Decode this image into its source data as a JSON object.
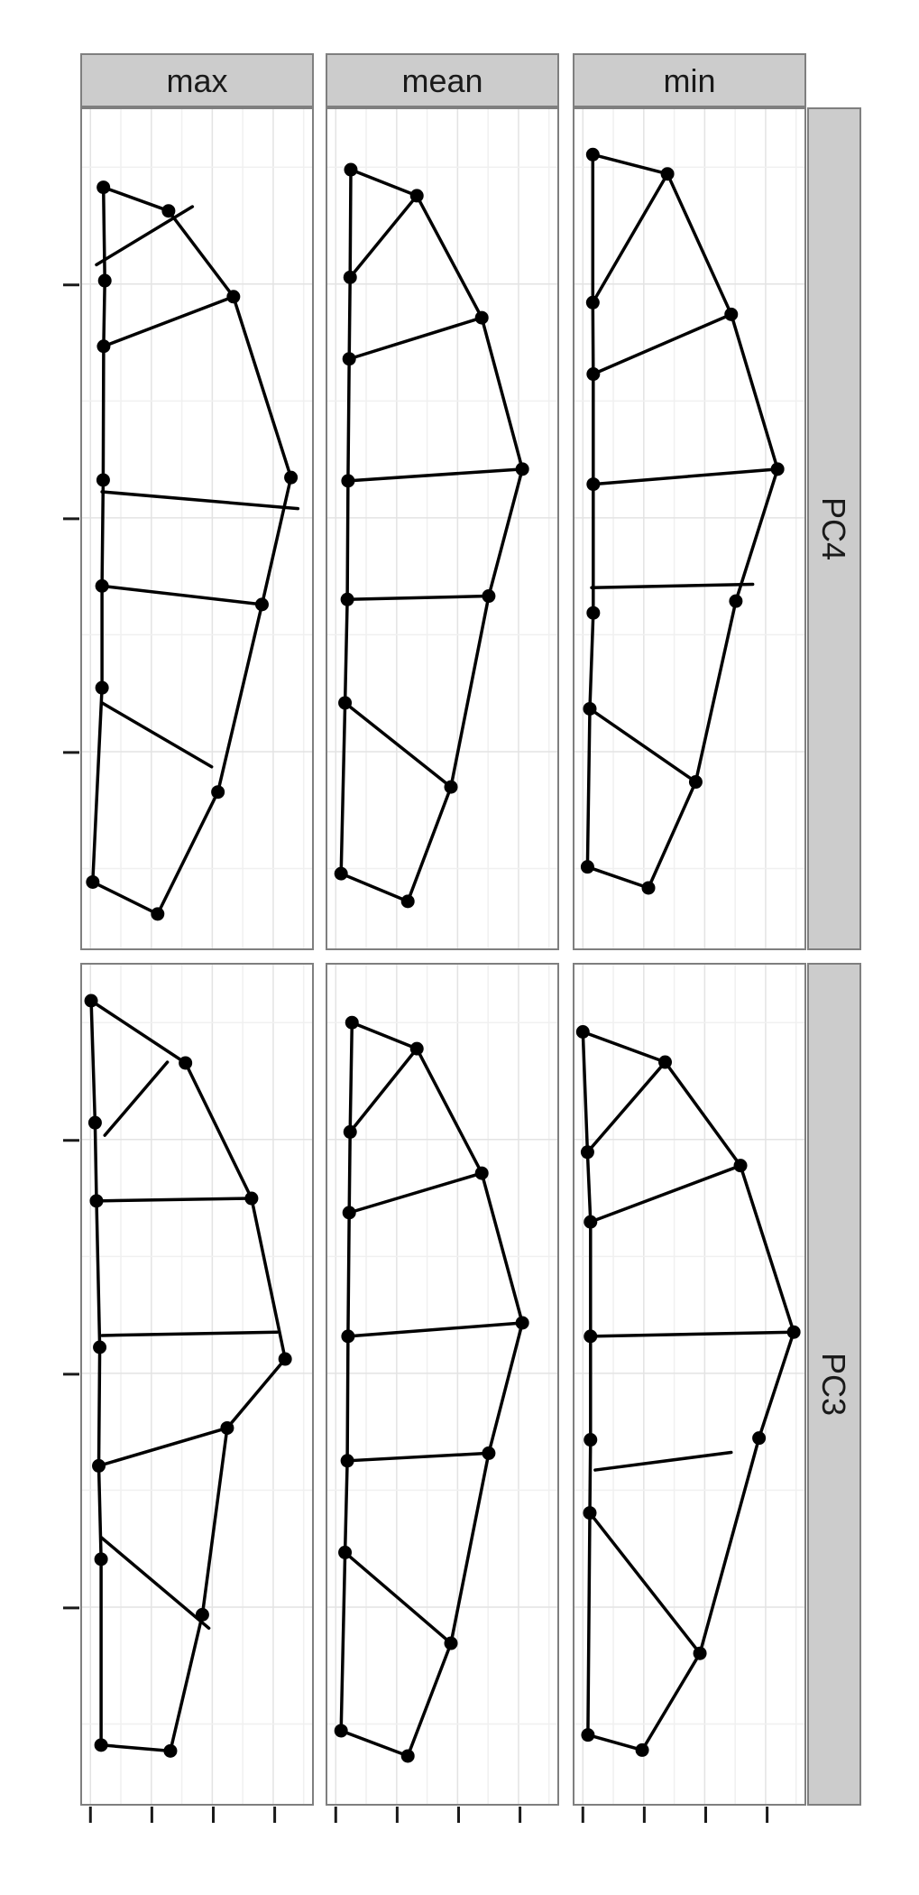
{
  "chart_data": {
    "type": "line",
    "title": "",
    "xlabel": "",
    "ylabel": "",
    "x_tick_count": 4,
    "y_tick_count": 3,
    "xlim": [
      0,
      1
    ],
    "ylim": [
      0,
      1
    ],
    "grid": true,
    "facet_columns": [
      "max",
      "mean",
      "min"
    ],
    "facet_rows": [
      "PC4",
      "PC3"
    ],
    "panels": [
      {
        "row": "PC4",
        "col": "max",
        "landmarks": [
          [
            0.096,
            0.094
          ],
          [
            0.377,
            0.122
          ],
          [
            0.657,
            0.224
          ],
          [
            0.905,
            0.439
          ],
          [
            0.78,
            0.59
          ],
          [
            0.59,
            0.813
          ],
          [
            0.33,
            0.958
          ],
          [
            0.05,
            0.92
          ],
          [
            0.09,
            0.689
          ],
          [
            0.09,
            0.568
          ],
          [
            0.095,
            0.442
          ],
          [
            0.097,
            0.283
          ],
          [
            0.102,
            0.205
          ]
        ],
        "outline": [
          0,
          1,
          2,
          3,
          4,
          5,
          6,
          7,
          8,
          9,
          10,
          11,
          12,
          0
        ],
        "chords": [
          [
            [
              0.066,
              0.186
            ],
            [
              0.48,
              0.117
            ]
          ],
          [
            [
              0.097,
              0.283
            ],
            [
              0.657,
              0.224
            ]
          ],
          [
            [
              0.09,
              0.456
            ],
            [
              0.935,
              0.476
            ]
          ],
          [
            [
              0.09,
              0.568
            ],
            [
              0.78,
              0.59
            ]
          ],
          [
            [
              0.09,
              0.707
            ],
            [
              0.563,
              0.783
            ]
          ]
        ]
      },
      {
        "row": "PC4",
        "col": "mean",
        "landmarks": [
          [
            0.105,
            0.073
          ],
          [
            0.39,
            0.104
          ],
          [
            0.67,
            0.249
          ],
          [
            0.845,
            0.429
          ],
          [
            0.7,
            0.58
          ],
          [
            0.537,
            0.807
          ],
          [
            0.351,
            0.943
          ],
          [
            0.063,
            0.91
          ],
          [
            0.08,
            0.707
          ],
          [
            0.09,
            0.584
          ],
          [
            0.093,
            0.443
          ],
          [
            0.098,
            0.298
          ],
          [
            0.102,
            0.201
          ]
        ],
        "outline": [
          0,
          1,
          2,
          3,
          4,
          5,
          6,
          7,
          8,
          9,
          10,
          11,
          12,
          0
        ],
        "chords": [
          [
            [
              0.102,
              0.201
            ],
            [
              0.39,
              0.104
            ]
          ],
          [
            [
              0.098,
              0.298
            ],
            [
              0.67,
              0.249
            ]
          ],
          [
            [
              0.093,
              0.443
            ],
            [
              0.845,
              0.429
            ]
          ],
          [
            [
              0.09,
              0.584
            ],
            [
              0.7,
              0.58
            ]
          ],
          [
            [
              0.08,
              0.707
            ],
            [
              0.537,
              0.807
            ]
          ]
        ]
      },
      {
        "row": "PC4",
        "col": "min",
        "landmarks": [
          [
            0.083,
            0.055
          ],
          [
            0.405,
            0.078
          ],
          [
            0.68,
            0.245
          ],
          [
            0.88,
            0.429
          ],
          [
            0.7,
            0.586
          ],
          [
            0.527,
            0.801
          ],
          [
            0.323,
            0.927
          ],
          [
            0.06,
            0.902
          ],
          [
            0.07,
            0.714
          ],
          [
            0.085,
            0.6
          ],
          [
            0.085,
            0.447
          ],
          [
            0.085,
            0.316
          ],
          [
            0.083,
            0.231
          ]
        ],
        "outline": [
          0,
          1,
          2,
          3,
          4,
          5,
          6,
          7,
          8,
          9,
          10,
          11,
          12,
          0
        ],
        "chords": [
          [
            [
              0.083,
              0.231
            ],
            [
              0.405,
              0.078
            ]
          ],
          [
            [
              0.085,
              0.316
            ],
            [
              0.68,
              0.245
            ]
          ],
          [
            [
              0.085,
              0.447
            ],
            [
              0.88,
              0.429
            ]
          ],
          [
            [
              0.078,
              0.57
            ],
            [
              0.773,
              0.566
            ]
          ],
          [
            [
              0.07,
              0.714
            ],
            [
              0.527,
              0.801
            ]
          ]
        ]
      },
      {
        "row": "PC3",
        "col": "max",
        "landmarks": [
          [
            0.043,
            0.044
          ],
          [
            0.45,
            0.118
          ],
          [
            0.735,
            0.279
          ],
          [
            0.88,
            0.47
          ],
          [
            0.63,
            0.552
          ],
          [
            0.523,
            0.774
          ],
          [
            0.385,
            0.936
          ],
          [
            0.086,
            0.929
          ],
          [
            0.086,
            0.708
          ],
          [
            0.076,
            0.597
          ],
          [
            0.08,
            0.456
          ],
          [
            0.066,
            0.282
          ],
          [
            0.06,
            0.189
          ]
        ],
        "outline": [
          0,
          1,
          2,
          3,
          4,
          5,
          6,
          7,
          8,
          9,
          10,
          11,
          12,
          0
        ],
        "chords": [
          [
            [
              0.102,
              0.204
            ],
            [
              0.372,
              0.117
            ]
          ],
          [
            [
              0.066,
              0.282
            ],
            [
              0.735,
              0.279
            ]
          ],
          [
            [
              0.09,
              0.442
            ],
            [
              0.845,
              0.438
            ]
          ],
          [
            [
              0.076,
              0.597
            ],
            [
              0.63,
              0.552
            ]
          ],
          [
            [
              0.086,
              0.682
            ],
            [
              0.551,
              0.79
            ]
          ]
        ]
      },
      {
        "row": "PC3",
        "col": "mean",
        "landmarks": [
          [
            0.11,
            0.07
          ],
          [
            0.39,
            0.101
          ],
          [
            0.67,
            0.249
          ],
          [
            0.845,
            0.427
          ],
          [
            0.7,
            0.582
          ],
          [
            0.537,
            0.808
          ],
          [
            0.351,
            0.942
          ],
          [
            0.063,
            0.912
          ],
          [
            0.08,
            0.7
          ],
          [
            0.09,
            0.591
          ],
          [
            0.093,
            0.443
          ],
          [
            0.098,
            0.296
          ],
          [
            0.102,
            0.2
          ]
        ],
        "outline": [
          0,
          1,
          2,
          3,
          4,
          5,
          6,
          7,
          8,
          9,
          10,
          11,
          12,
          0
        ],
        "chords": [
          [
            [
              0.102,
              0.2
            ],
            [
              0.39,
              0.101
            ]
          ],
          [
            [
              0.098,
              0.296
            ],
            [
              0.67,
              0.249
            ]
          ],
          [
            [
              0.093,
              0.443
            ],
            [
              0.845,
              0.427
            ]
          ],
          [
            [
              0.09,
              0.591
            ],
            [
              0.7,
              0.582
            ]
          ],
          [
            [
              0.08,
              0.7
            ],
            [
              0.537,
              0.808
            ]
          ]
        ]
      },
      {
        "row": "PC3",
        "col": "min",
        "landmarks": [
          [
            0.04,
            0.081
          ],
          [
            0.395,
            0.117
          ],
          [
            0.72,
            0.24
          ],
          [
            0.95,
            0.438
          ],
          [
            0.8,
            0.564
          ],
          [
            0.545,
            0.82
          ],
          [
            0.296,
            0.935
          ],
          [
            0.062,
            0.917
          ],
          [
            0.07,
            0.653
          ],
          [
            0.073,
            0.566
          ],
          [
            0.073,
            0.443
          ],
          [
            0.073,
            0.307
          ],
          [
            0.06,
            0.224
          ]
        ],
        "outline": [
          0,
          1,
          2,
          3,
          4,
          5,
          6,
          7,
          8,
          9,
          10,
          11,
          12,
          0
        ],
        "chords": [
          [
            [
              0.06,
              0.224
            ],
            [
              0.395,
              0.117
            ]
          ],
          [
            [
              0.073,
              0.307
            ],
            [
              0.72,
              0.24
            ]
          ],
          [
            [
              0.073,
              0.443
            ],
            [
              0.95,
              0.438
            ]
          ],
          [
            [
              0.093,
              0.602
            ],
            [
              0.68,
              0.581
            ]
          ],
          [
            [
              0.07,
              0.653
            ],
            [
              0.545,
              0.82
            ]
          ]
        ]
      }
    ]
  }
}
